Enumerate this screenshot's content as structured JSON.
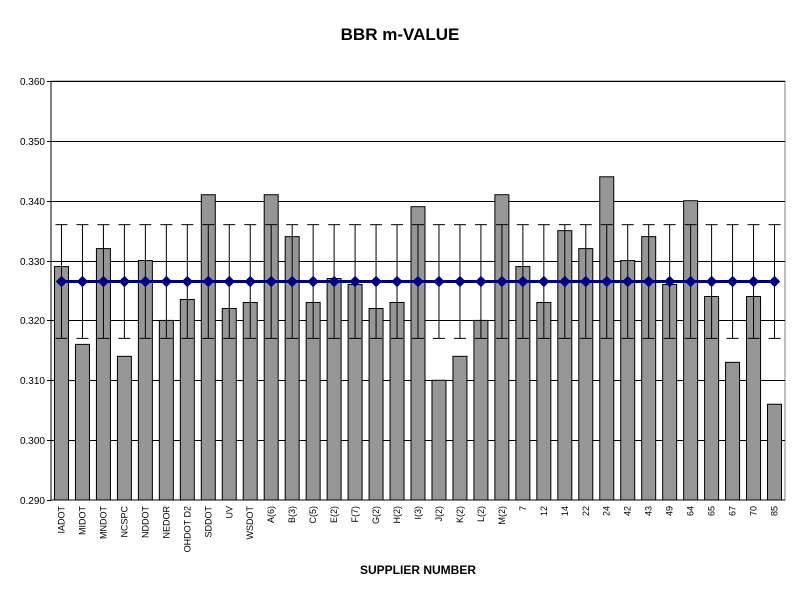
{
  "chart_data": {
    "type": "bar",
    "title": "BBR m-VALUE",
    "xlabel": "SUPPLIER NUMBER",
    "ylabel": "",
    "ylim": [
      0.29,
      0.36
    ],
    "yticks": [
      "0.290",
      "0.300",
      "0.310",
      "0.320",
      "0.330",
      "0.340",
      "0.350",
      "0.360"
    ],
    "ytick_values": [
      0.29,
      0.3,
      0.31,
      0.32,
      0.33,
      0.34,
      0.35,
      0.36
    ],
    "grid": true,
    "legend": "none",
    "categories": [
      "IADOT",
      "MIDOT",
      "MNDOT",
      "NCSPC",
      "NDDOT",
      "NEDOR",
      "OHDOT D2",
      "SDDOT",
      "UV",
      "WSDOT",
      "A(6)",
      "B(3)",
      "C(5)",
      "E(2)",
      "F(7)",
      "G(2)",
      "H(2)",
      "I(3)",
      "J(2)",
      "K(2)",
      "L(2)",
      "M(2)",
      "7",
      "12",
      "14",
      "22",
      "24",
      "42",
      "43",
      "49",
      "64",
      "65",
      "67",
      "70",
      "85"
    ],
    "values": [
      0.329,
      0.316,
      0.332,
      0.314,
      0.33,
      0.32,
      0.3235,
      0.341,
      0.322,
      0.323,
      0.341,
      0.334,
      0.323,
      0.327,
      0.326,
      0.322,
      0.323,
      0.339,
      0.31,
      0.314,
      0.32,
      0.341,
      0.329,
      0.323,
      0.335,
      0.332,
      0.344,
      0.33,
      0.334,
      0.326,
      0.34,
      0.324,
      0.313,
      0.324,
      0.306
    ],
    "mean_line": {
      "value": 0.3265,
      "error_upper": 0.336,
      "error_lower": 0.317
    },
    "colors": {
      "bar_fill": "#969696",
      "bar_stroke": "#000000",
      "plot_background": "#ffffff",
      "gridline": "#000000",
      "mean_line": "#00007a",
      "mean_marker": "#000080",
      "error_bar": "#000000"
    }
  }
}
